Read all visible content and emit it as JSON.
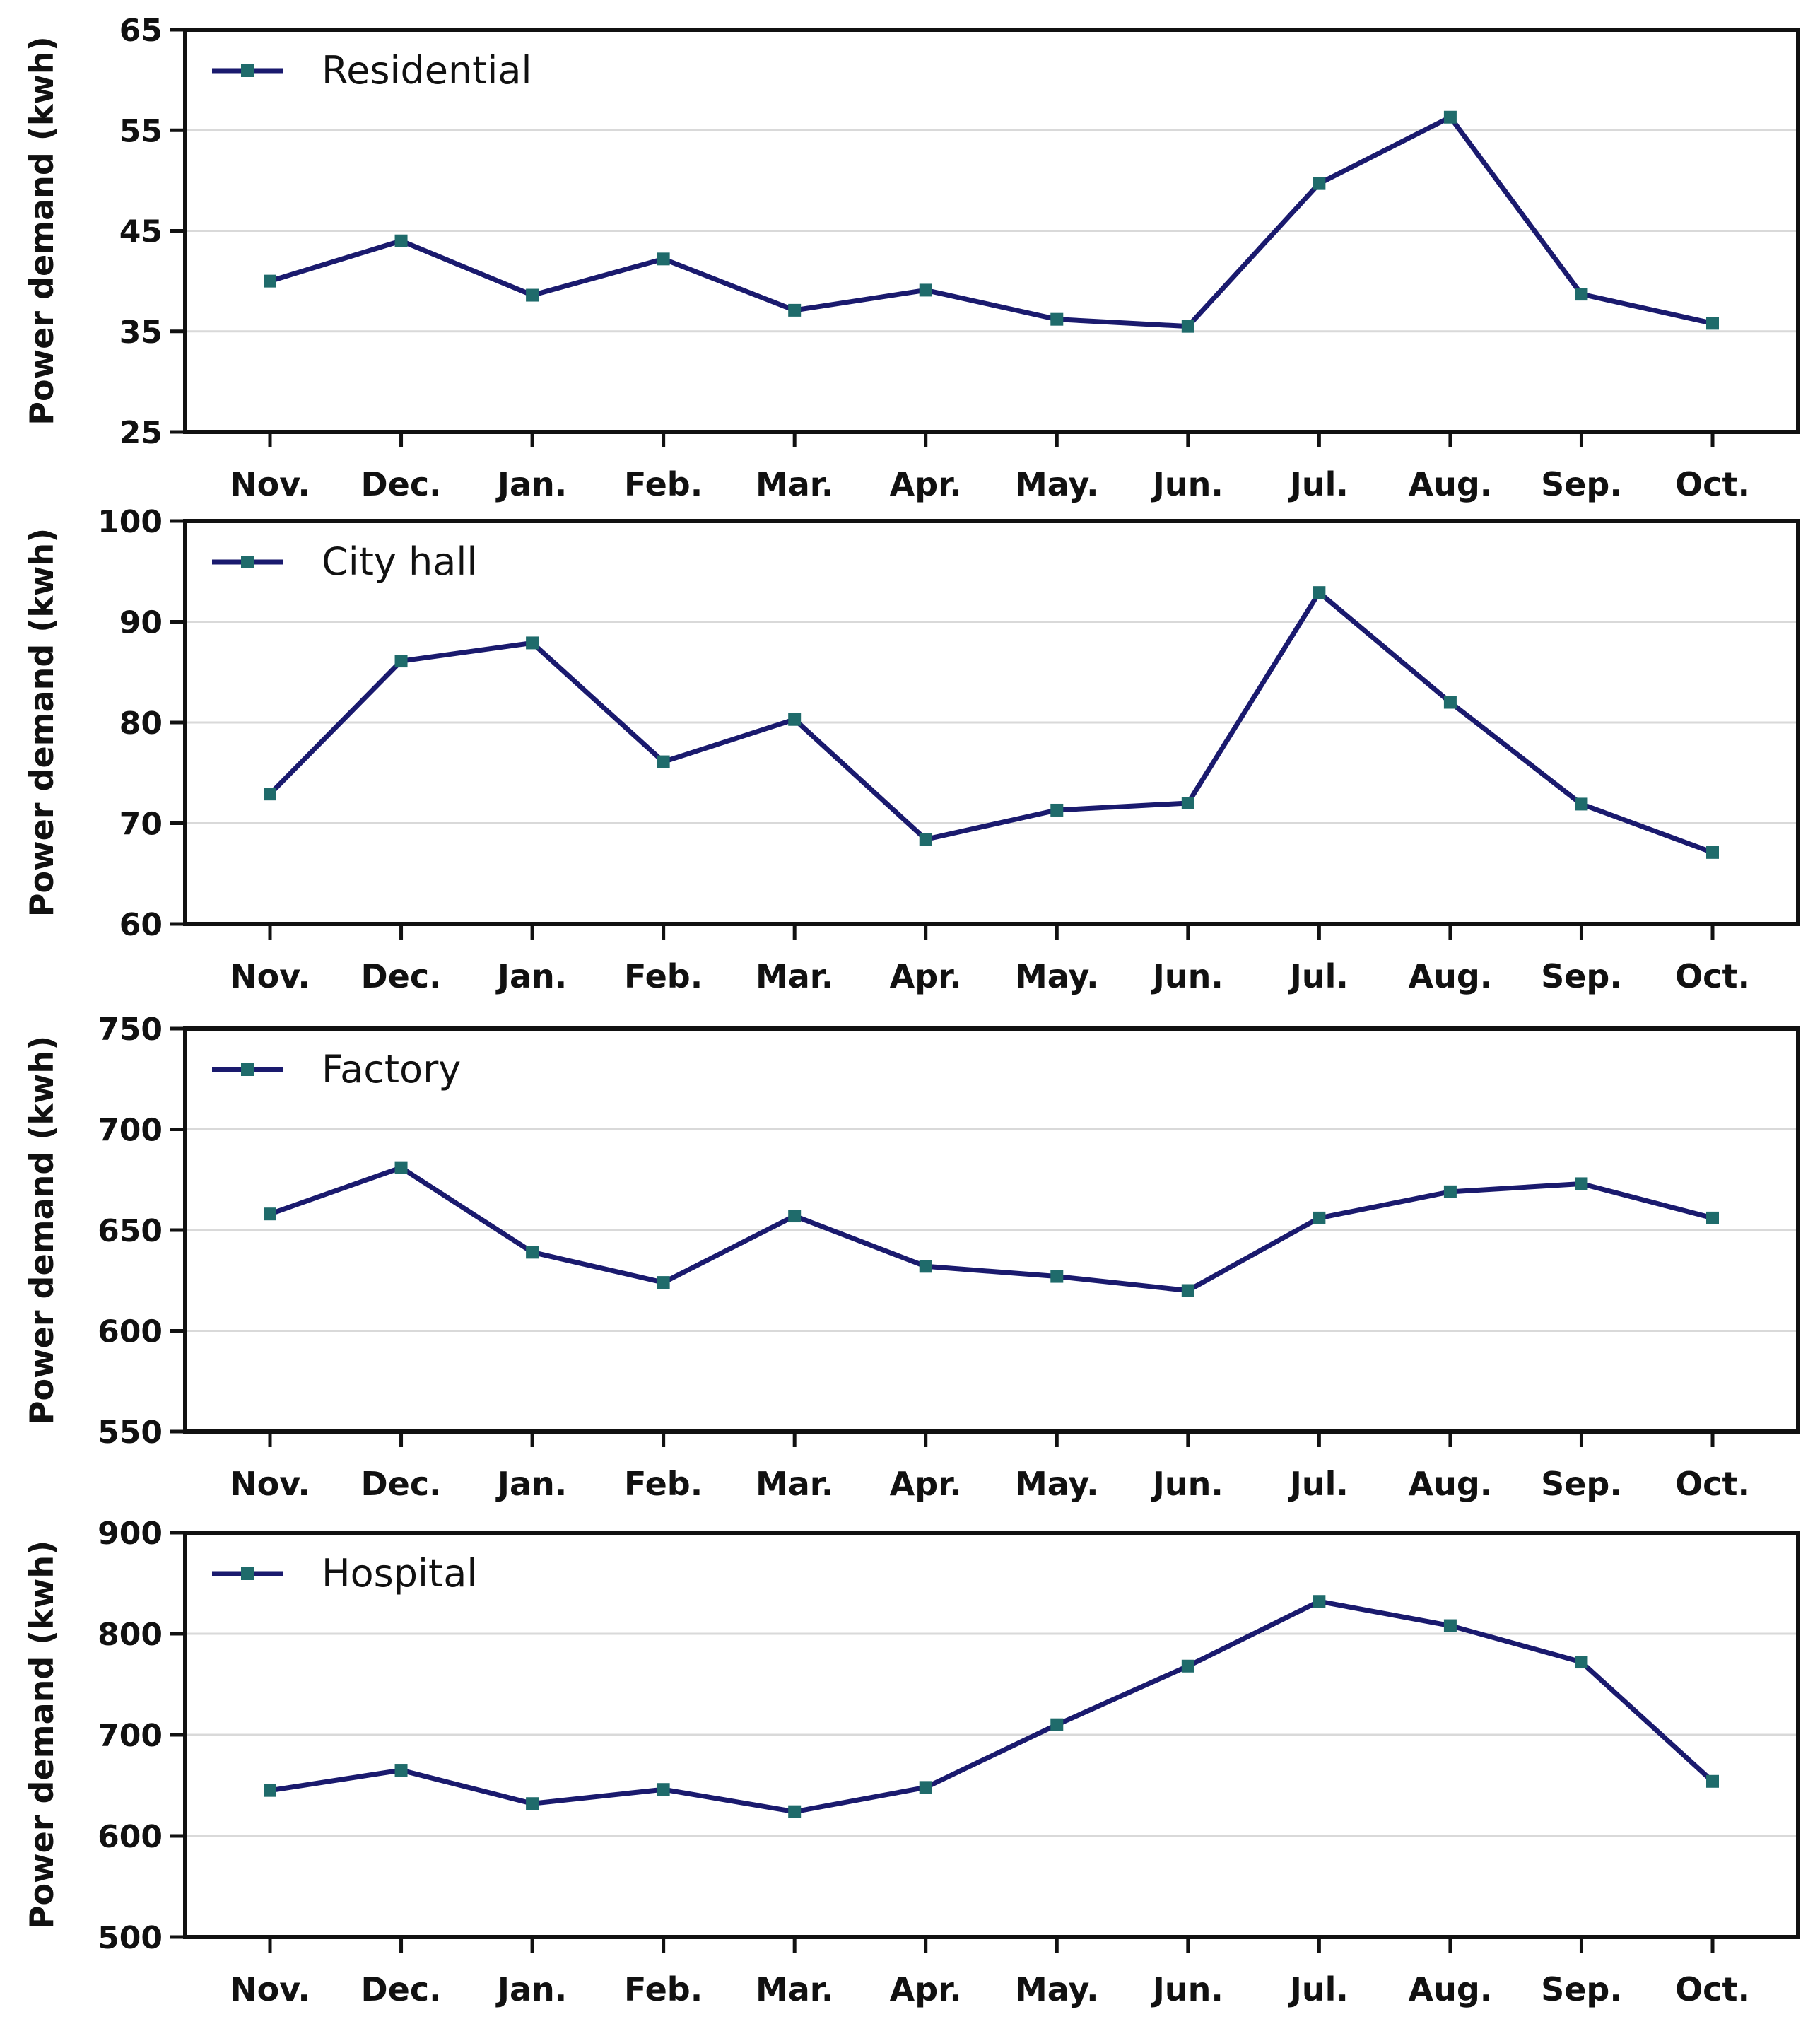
{
  "colors": {
    "line": "#1a1a6e",
    "marker": "#1f6b6b",
    "grid": "#d9d9d9",
    "frame": "#111111"
  },
  "chart_data": [
    {
      "type": "line",
      "title": "",
      "xlabel": "",
      "ylabel": "Power demand (kwh)",
      "ylim": [
        25,
        65
      ],
      "yticks": [
        25,
        35,
        45,
        55,
        65
      ],
      "categories": [
        "Nov.",
        "Dec.",
        "Jan.",
        "Feb.",
        "Mar.",
        "Apr.",
        "May.",
        "Jun.",
        "Jul.",
        "Aug.",
        "Sep.",
        "Oct."
      ],
      "grid": true,
      "legend": "top-left",
      "series": [
        {
          "name": "Residential",
          "values": [
            40,
            44,
            38.6,
            42.2,
            37.1,
            39.1,
            36.2,
            35.5,
            49.7,
            56.3,
            38.7,
            35.8
          ]
        }
      ]
    },
    {
      "type": "line",
      "title": "",
      "xlabel": "",
      "ylabel": "Power demand (kwh)",
      "ylim": [
        60,
        100
      ],
      "yticks": [
        60,
        70,
        80,
        90,
        100
      ],
      "categories": [
        "Nov.",
        "Dec.",
        "Jan.",
        "Feb.",
        "Mar.",
        "Apr.",
        "May.",
        "Jun.",
        "Jul.",
        "Aug.",
        "Sep.",
        "Oct."
      ],
      "grid": true,
      "legend": "top-left",
      "series": [
        {
          "name": "City hall",
          "values": [
            72.9,
            86.1,
            87.9,
            76.1,
            80.3,
            68.4,
            71.3,
            72,
            92.9,
            82,
            71.9,
            67.1
          ]
        }
      ]
    },
    {
      "type": "line",
      "title": "",
      "xlabel": "",
      "ylabel": "Power demand (kwh)",
      "ylim": [
        550,
        750
      ],
      "yticks": [
        550,
        600,
        650,
        700,
        750
      ],
      "categories": [
        "Nov.",
        "Dec.",
        "Jan.",
        "Feb.",
        "Mar.",
        "Apr.",
        "May.",
        "Jun.",
        "Jul.",
        "Aug.",
        "Sep.",
        "Oct."
      ],
      "grid": true,
      "legend": "top-left",
      "series": [
        {
          "name": "Factory",
          "values": [
            658,
            681,
            639,
            624,
            657,
            632,
            627,
            620,
            656,
            669,
            673,
            656
          ]
        }
      ]
    },
    {
      "type": "line",
      "title": "",
      "xlabel": "",
      "ylabel": "Power demand (kwh)",
      "ylim": [
        500,
        900
      ],
      "yticks": [
        500,
        600,
        700,
        800,
        900
      ],
      "categories": [
        "Nov.",
        "Dec.",
        "Jan.",
        "Feb.",
        "Mar.",
        "Apr.",
        "May.",
        "Jun.",
        "Jul.",
        "Aug.",
        "Sep.",
        "Oct."
      ],
      "grid": true,
      "legend": "top-left",
      "series": [
        {
          "name": "Hospital",
          "values": [
            645,
            665,
            632,
            646,
            624,
            648,
            710,
            768,
            832,
            808,
            772,
            654
          ]
        }
      ]
    }
  ]
}
